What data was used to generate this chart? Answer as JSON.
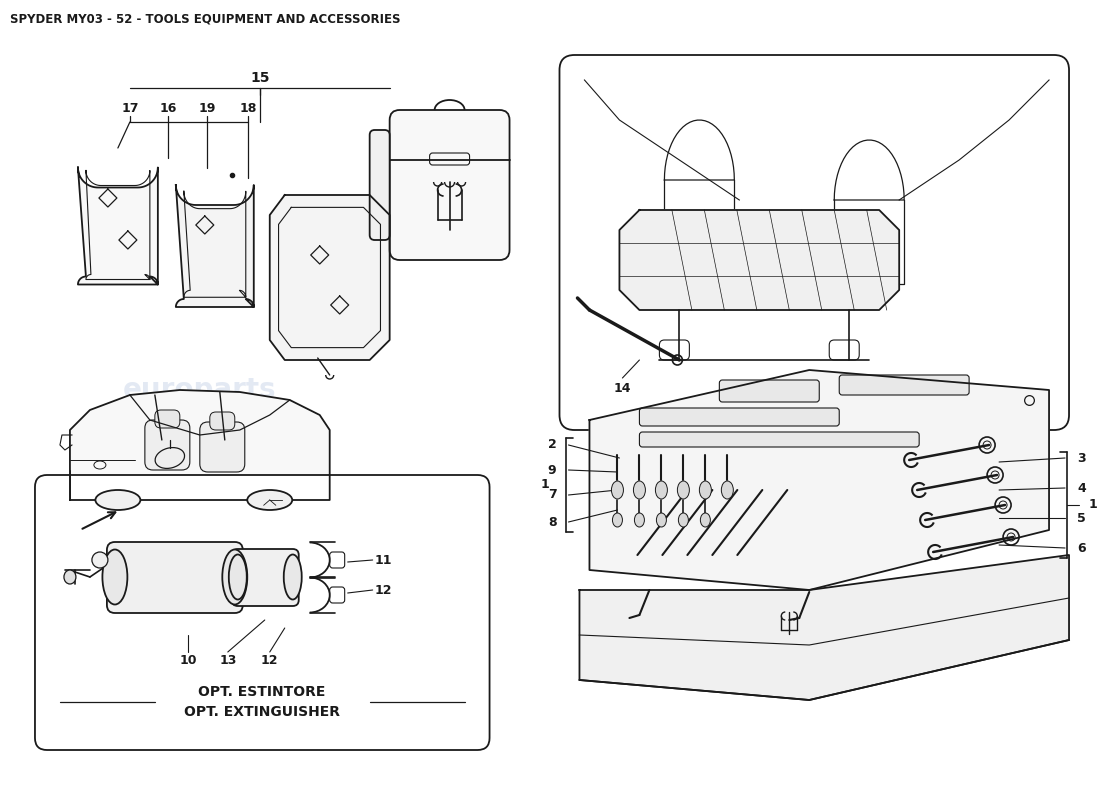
{
  "title": "SPYDER MY03 - 52 - TOOLS EQUIPMENT AND ACCESSORIES",
  "title_fontsize": 8.5,
  "bg": "#ffffff",
  "lc": "#1a1a1a",
  "wm_color": "#c8d4e8",
  "wm_alpha": 0.5,
  "wm_text": "europarts"
}
